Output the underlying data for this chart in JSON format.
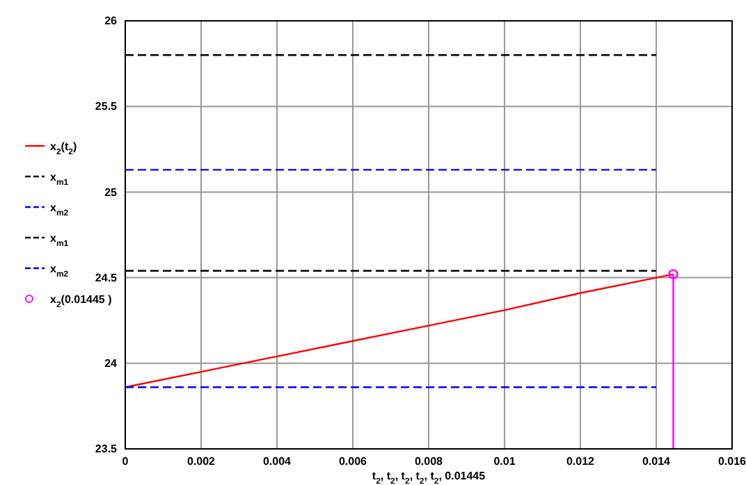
{
  "chart_data": {
    "type": "line",
    "xlabel": "t$_{2}$, t$_{2}$, t$_{2}$, t$_{2}$, t$_{2}$, 0.01445",
    "xlim": [
      0,
      0.016
    ],
    "xticks": [
      0,
      0.002,
      0.004,
      0.006,
      0.008,
      0.01,
      0.012,
      0.014,
      0.016
    ],
    "ylim": [
      23.5,
      26
    ],
    "yticks": [
      23.5,
      24,
      24.5,
      25,
      25.5,
      26
    ],
    "grid": true,
    "legend": "left",
    "series": [
      {
        "name": "x$_{2}$(t$_{2}$)",
        "color": "#ff0000",
        "x": [
          0,
          0.002,
          0.004,
          0.006,
          0.008,
          0.01,
          0.012,
          0.014,
          0.01445
        ],
        "values": [
          23.86,
          23.95,
          24.04,
          24.13,
          24.22,
          24.31,
          24.41,
          24.5,
          24.52
        ],
        "line_style": "solid"
      },
      {
        "name": "x$_{m1}$",
        "color": "#000000",
        "x": [
          0,
          0.014
        ],
        "values": [
          25.8,
          25.8
        ],
        "line_style": "dashed"
      },
      {
        "name": "x$_{m2}$",
        "color": "#0000ff",
        "x": [
          0,
          0.014
        ],
        "values": [
          25.13,
          25.13
        ],
        "line_style": "dashed"
      },
      {
        "name": "x$_{m1}$",
        "color": "#000000",
        "x": [
          0,
          0.014
        ],
        "values": [
          24.54,
          24.54
        ],
        "line_style": "dashed"
      },
      {
        "name": "x$_{m2}$",
        "color": "#0000ff",
        "x": [
          0,
          0.014
        ],
        "values": [
          23.86,
          23.86
        ],
        "line_style": "dashed"
      },
      {
        "name": "x$_{2}$(0.01445 )",
        "type": "scatter",
        "marker": "circle",
        "color": "#ff00ff",
        "x": [
          0.01445
        ],
        "values": [
          24.52
        ]
      },
      {
        "color": "#ff00ff",
        "x": [
          0.01445,
          0.01445
        ],
        "values": [
          23.5,
          24.52
        ],
        "line_style": "solid"
      }
    ]
  }
}
